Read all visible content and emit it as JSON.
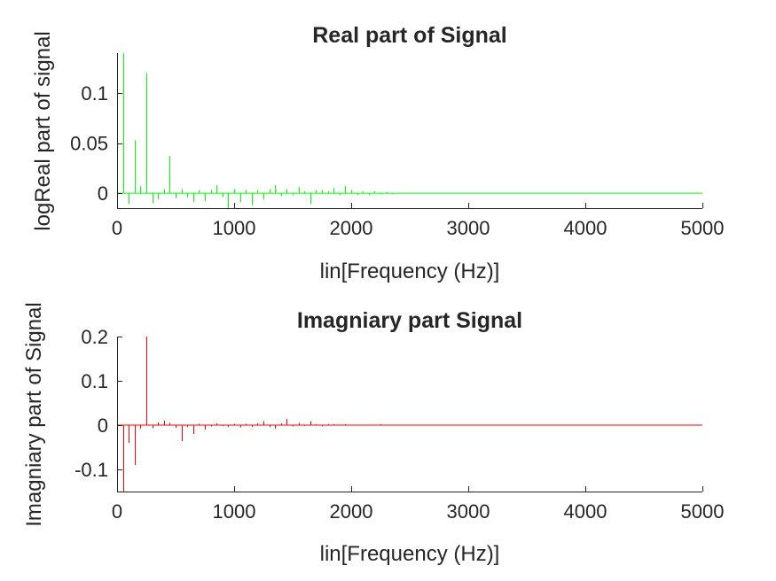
{
  "chart_data": [
    {
      "type": "line",
      "title": "Real part of Signal",
      "xlabel": "lin[Frequency (Hz)]",
      "ylabel": "logReal part of signal",
      "xlim": [
        0,
        5000
      ],
      "ylim": [
        -0.015,
        0.14
      ],
      "xticks": [
        0,
        1000,
        2000,
        3000,
        4000,
        5000
      ],
      "xtick_labels": [
        "0",
        "1000",
        "2000",
        "3000",
        "4000",
        "5000"
      ],
      "yticks": [
        0,
        0.05,
        0.1
      ],
      "ytick_labels": [
        "0",
        "0.05",
        "0.1"
      ],
      "grid": false,
      "color": "#00ff00",
      "series": [
        {
          "x": [
            50,
            100,
            150,
            200,
            250,
            300,
            350,
            400,
            450,
            500,
            550,
            600,
            650,
            700,
            750,
            800,
            850,
            900,
            950,
            1000,
            1050,
            1100,
            1150,
            1200,
            1250,
            1300,
            1350,
            1400,
            1450,
            1500,
            1550,
            1600,
            1650,
            1700,
            1750,
            1800,
            1850,
            1900,
            1950,
            2000,
            2050,
            2100,
            2150,
            2200,
            2250,
            2300,
            2350
          ],
          "values": [
            0.14,
            -0.011,
            0.053,
            0.007,
            0.12,
            -0.01,
            -0.006,
            0.004,
            0.037,
            -0.005,
            0.004,
            -0.004,
            -0.009,
            0.003,
            -0.008,
            0.003,
            0.008,
            -0.004,
            -0.016,
            0.004,
            -0.009,
            0.003,
            -0.012,
            0.003,
            -0.006,
            0.004,
            0.008,
            -0.003,
            0.004,
            -0.002,
            0.006,
            0.002,
            -0.011,
            0.003,
            0.003,
            0.002,
            0.005,
            -0.002,
            0.007,
            0.003,
            -0.002,
            0.002,
            -0.002,
            0.002,
            -0.001,
            0.001,
            -0.001
          ]
        }
      ]
    },
    {
      "type": "line",
      "title": "Imagniary part Signal",
      "xlabel": "lin[Frequency (Hz)]",
      "ylabel": "Imagniary part of Signal",
      "xlim": [
        0,
        5000
      ],
      "ylim": [
        -0.15,
        0.2
      ],
      "xticks": [
        0,
        1000,
        2000,
        3000,
        4000,
        5000
      ],
      "xtick_labels": [
        "0",
        "1000",
        "2000",
        "3000",
        "4000",
        "5000"
      ],
      "yticks": [
        -0.1,
        0,
        0.1,
        0.2
      ],
      "ytick_labels": [
        "-0.1",
        "0",
        "0.1",
        "0.2"
      ],
      "grid": false,
      "color": "#ff0000",
      "series": [
        {
          "x": [
            50,
            100,
            150,
            200,
            250,
            300,
            350,
            400,
            450,
            500,
            550,
            600,
            650,
            700,
            750,
            800,
            850,
            900,
            950,
            1000,
            1050,
            1100,
            1150,
            1200,
            1250,
            1300,
            1350,
            1400,
            1450,
            1500,
            1550,
            1600,
            1650,
            1700,
            1750,
            1800,
            1850,
            1900,
            1950,
            2000,
            2100,
            2250
          ],
          "values": [
            -0.15,
            -0.04,
            -0.09,
            -0.008,
            0.2,
            -0.007,
            0.006,
            0.01,
            0.005,
            -0.006,
            -0.036,
            -0.004,
            -0.02,
            0.003,
            -0.01,
            -0.003,
            0.004,
            -0.002,
            -0.004,
            0.003,
            -0.005,
            0.003,
            -0.004,
            0.004,
            0.009,
            -0.004,
            -0.008,
            0.004,
            0.014,
            -0.003,
            0.005,
            -0.002,
            0.009,
            0.002,
            -0.003,
            0.002,
            0.002,
            -0.001,
            0.002,
            -0.001,
            0.001,
            0.002
          ]
        }
      ]
    }
  ]
}
